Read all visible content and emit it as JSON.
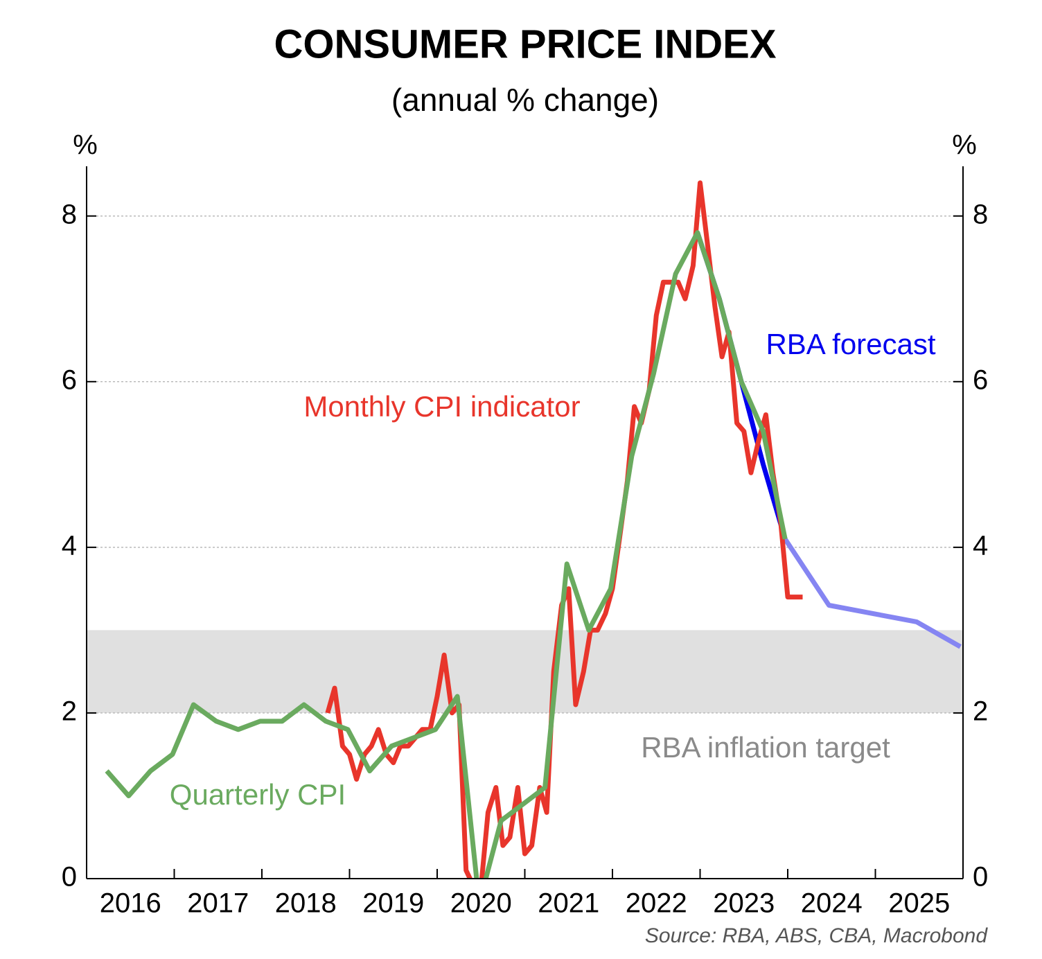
{
  "chart_data": {
    "type": "line",
    "title": "CONSUMER PRICE INDEX",
    "subtitle": "(annual % change)",
    "y_unit": "%",
    "y2_unit": "%",
    "source": "Source: RBA, ABS, CBA, Macrobond",
    "xlim": [
      2016,
      2026
    ],
    "xticks": [
      2017,
      2018,
      2019,
      2020,
      2021,
      2022,
      2023,
      2024,
      2025
    ],
    "xtick_labels": [
      {
        "value": 2016.5,
        "label": "2016"
      },
      {
        "value": 2017.5,
        "label": "2017"
      },
      {
        "value": 2018.5,
        "label": "2018"
      },
      {
        "value": 2019.5,
        "label": "2019"
      },
      {
        "value": 2020.5,
        "label": "2020"
      },
      {
        "value": 2021.5,
        "label": "2021"
      },
      {
        "value": 2022.5,
        "label": "2022"
      },
      {
        "value": 2023.5,
        "label": "2023"
      },
      {
        "value": 2024.5,
        "label": "2024"
      },
      {
        "value": 2025.5,
        "label": "2025"
      }
    ],
    "ylim": [
      0,
      8.6
    ],
    "yticks": [
      0,
      2,
      4,
      6,
      8
    ],
    "y2lim": [
      0,
      8.6
    ],
    "y2ticks": [
      0,
      2,
      4,
      6,
      8
    ],
    "grid": true,
    "target_band": [
      2,
      3
    ],
    "target_label": "RBA inflation target",
    "target_color": "#e0e0e0",
    "series": [
      {
        "name": "RBA forecast",
        "color": "#0000ee",
        "x": [
          2022.97,
          2023.22,
          2023.47,
          2023.72,
          2023.97
        ],
        "values": [
          7.8,
          7.0,
          6.0,
          5.0,
          4.1
        ]
      },
      {
        "color": "#8585f2",
        "x": [
          2023.97,
          2024.47,
          2025.47,
          2025.97
        ],
        "values": [
          4.1,
          3.3,
          3.1,
          2.8
        ]
      },
      {
        "name": "Monthly CPI indicator",
        "color": "#e8352b",
        "x": [
          2018.75,
          2018.83,
          2018.92,
          2019.0,
          2019.08,
          2019.17,
          2019.25,
          2019.33,
          2019.42,
          2019.5,
          2019.58,
          2019.67,
          2019.75,
          2019.83,
          2019.92,
          2020.0,
          2020.08,
          2020.17,
          2020.25,
          2020.33,
          2020.42,
          2020.5,
          2020.58,
          2020.67,
          2020.75,
          2020.83,
          2020.92,
          2021.0,
          2021.08,
          2021.17,
          2021.25,
          2021.33,
          2021.42,
          2021.5,
          2021.58,
          2021.67,
          2021.75,
          2021.83,
          2021.92,
          2022.0,
          2022.08,
          2022.17,
          2022.25,
          2022.33,
          2022.42,
          2022.5,
          2022.58,
          2022.67,
          2022.75,
          2022.83,
          2022.92,
          2023.0,
          2023.08,
          2023.17,
          2023.25,
          2023.33,
          2023.42,
          2023.5,
          2023.58,
          2023.67,
          2023.75,
          2023.83,
          2023.92,
          2024.0,
          2024.08,
          2024.17
        ],
        "values": [
          2.0,
          2.3,
          1.6,
          1.5,
          1.2,
          1.5,
          1.6,
          1.8,
          1.5,
          1.4,
          1.6,
          1.6,
          1.7,
          1.8,
          1.8,
          2.2,
          2.7,
          2.0,
          2.1,
          0.1,
          -0.1,
          -0.1,
          0.8,
          1.1,
          0.4,
          0.5,
          1.1,
          0.3,
          0.4,
          1.1,
          0.8,
          2.5,
          3.3,
          3.5,
          2.1,
          2.5,
          3.0,
          3.0,
          3.2,
          3.5,
          4.1,
          4.8,
          5.7,
          5.5,
          5.9,
          6.8,
          7.2,
          7.2,
          7.2,
          7.0,
          7.4,
          8.4,
          7.7,
          6.9,
          6.3,
          6.6,
          5.5,
          5.4,
          4.9,
          5.3,
          5.6,
          4.9,
          4.3,
          3.4,
          3.4,
          3.4
        ]
      },
      {
        "name": "Quarterly CPI",
        "color": "#6aaa5f",
        "x": [
          2016.23,
          2016.48,
          2016.73,
          2016.98,
          2017.22,
          2017.48,
          2017.73,
          2017.98,
          2018.23,
          2018.48,
          2018.73,
          2018.98,
          2019.23,
          2019.48,
          2019.73,
          2019.98,
          2020.23,
          2020.48,
          2020.73,
          2020.98,
          2021.23,
          2021.48,
          2021.73,
          2021.98,
          2022.22,
          2022.47,
          2022.72,
          2022.97,
          2023.22,
          2023.47,
          2023.72,
          2023.97
        ],
        "values": [
          1.3,
          1.0,
          1.3,
          1.5,
          2.1,
          1.9,
          1.8,
          1.9,
          1.9,
          2.1,
          1.9,
          1.8,
          1.3,
          1.6,
          1.7,
          1.8,
          2.2,
          -0.3,
          0.7,
          0.9,
          1.1,
          3.8,
          3.0,
          3.5,
          5.1,
          6.1,
          7.3,
          7.8,
          7.0,
          6.0,
          5.4,
          4.1
        ]
      }
    ]
  }
}
